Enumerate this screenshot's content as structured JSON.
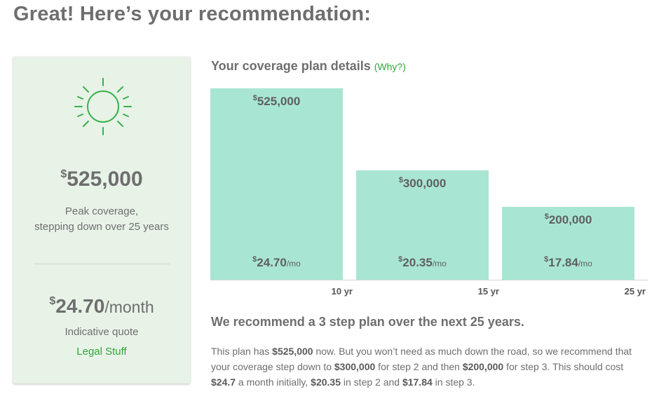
{
  "headline": "Great! Here’s your recommendation:",
  "summary": {
    "currency": "$",
    "peak_coverage": "525,000",
    "peak_desc_line1": "Peak coverage,",
    "peak_desc_line2": "stepping down over 25 years",
    "monthly_amount": "24.70",
    "monthly_unit": "/month",
    "quote_label": "Indicative quote",
    "legal_link": "Legal Stuff",
    "icon": "sun-icon",
    "accent_color": "#2fa637"
  },
  "plan": {
    "title": "Your coverage plan details",
    "why_link": "(Why?)"
  },
  "chart_data": {
    "type": "bar",
    "categories": [
      "10 yr",
      "15 yr",
      "25 yr"
    ],
    "coverage_labels": [
      "525,000",
      "300,000",
      "200,000"
    ],
    "premium_labels": [
      "24.70",
      "20.35",
      "17.84"
    ],
    "premium_unit": "/mo",
    "currency": "$",
    "series": [
      {
        "values": [
          525000,
          300000,
          200000
        ]
      }
    ],
    "ylim": [
      0,
      525000
    ],
    "bar_color": "#a8e6d3",
    "grid": false
  },
  "recommendation": {
    "title": "We recommend a 3 step plan over the next 25 years.",
    "t1": "This plan has ",
    "b1": "$525,000",
    "t2": " now. But you won’t need as much down the road, so we recommend that your coverage step down to ",
    "b2": "$300,000",
    "t3": " for step 2 and then ",
    "b3": "$200,000",
    "t4": " for step 3. This should cost ",
    "b4": "$24.7",
    "t5": " a month initially, ",
    "b5": "$20.35",
    "t6": " in step 2 and ",
    "b6": "$17.84",
    "t7": " in step 3."
  }
}
